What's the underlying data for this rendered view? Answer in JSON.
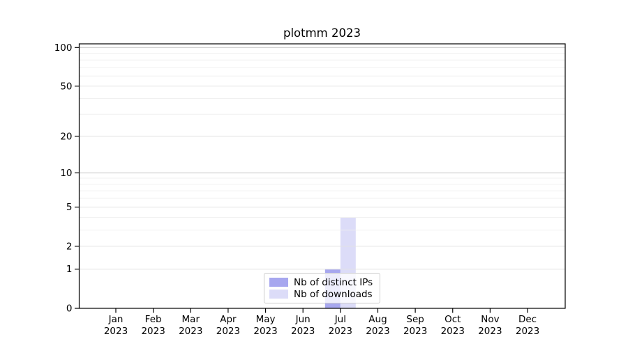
{
  "chart_data": {
    "type": "bar",
    "title": "plotmm 2023",
    "categories": [
      "Jan",
      "Feb",
      "Mar",
      "Apr",
      "May",
      "Jun",
      "Jul",
      "Aug",
      "Sep",
      "Oct",
      "Nov",
      "Dec"
    ],
    "x_year": "2023",
    "series": [
      {
        "name": "Nb of distinct IPs",
        "color": "#a7a7ef",
        "values": [
          0,
          0,
          0,
          0,
          0,
          0,
          1,
          0,
          0,
          0,
          0,
          0
        ]
      },
      {
        "name": "Nb of downloads",
        "color": "#dcdcf8",
        "values": [
          0,
          0,
          0,
          0,
          0,
          0,
          4,
          0,
          0,
          0,
          0,
          0
        ]
      }
    ],
    "y_ticks": [
      0,
      1,
      2,
      5,
      10,
      20,
      50,
      100
    ],
    "y_scale": "log1p",
    "ylim": [
      0,
      107
    ],
    "grid": "horizontal",
    "grid_decades": [
      10,
      100
    ],
    "grid_labeled": [
      1,
      2,
      5,
      20,
      50
    ],
    "grid_minor": [
      3,
      4,
      6,
      7,
      8,
      9,
      30,
      40,
      60,
      70,
      80,
      90
    ],
    "legend_position": "lower center",
    "colors": {
      "bar_distinct_ips": "#a7a7ef",
      "bar_downloads": "#dcdcf8",
      "grid_decade": "#c2c2c2",
      "grid_labeled": "#e2e2e2",
      "grid_minor": "#f0f0f0",
      "axis": "#000000",
      "legend_border": "#cccccc"
    }
  }
}
